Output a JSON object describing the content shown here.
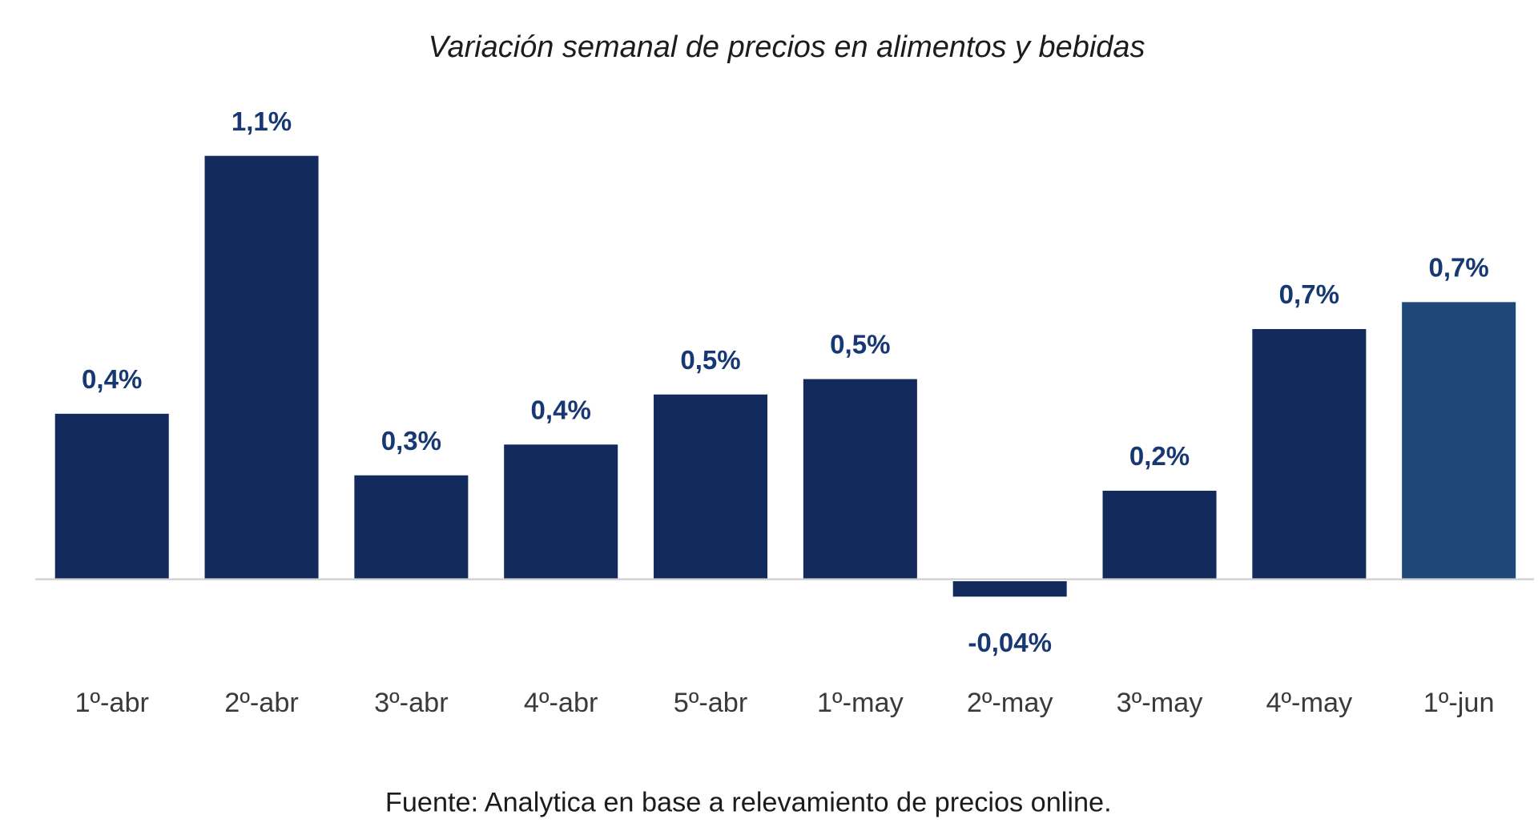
{
  "chart_data": {
    "type": "bar",
    "title": "Variación semanal de precios en alimentos y bebidas",
    "xlabel": "",
    "ylabel": "",
    "categories": [
      "1º-abr",
      "2º-abr",
      "3º-abr",
      "4º-abr",
      "5º-abr",
      "1º-may",
      "2º-may",
      "3º-may",
      "4º-may",
      "1º-jun"
    ],
    "values": [
      0.43,
      1.1,
      0.27,
      0.35,
      0.48,
      0.52,
      -0.04,
      0.23,
      0.65,
      0.72
    ],
    "data_labels": [
      "0,4%",
      "1,1%",
      "0,3%",
      "0,4%",
      "0,5%",
      "0,5%",
      "-0,04%",
      "0,2%",
      "0,7%",
      "0,7%"
    ],
    "ylim": [
      -0.1,
      1.3
    ],
    "grid": false,
    "legend": "none",
    "colors": {
      "bar": "#122b5c",
      "highlight_bar": "#1f4778",
      "label": "#183873",
      "axis": "#d0d0d0"
    },
    "highlight_index": 9,
    "source": "Fuente: Analytica en base a relevamiento de precios online."
  }
}
